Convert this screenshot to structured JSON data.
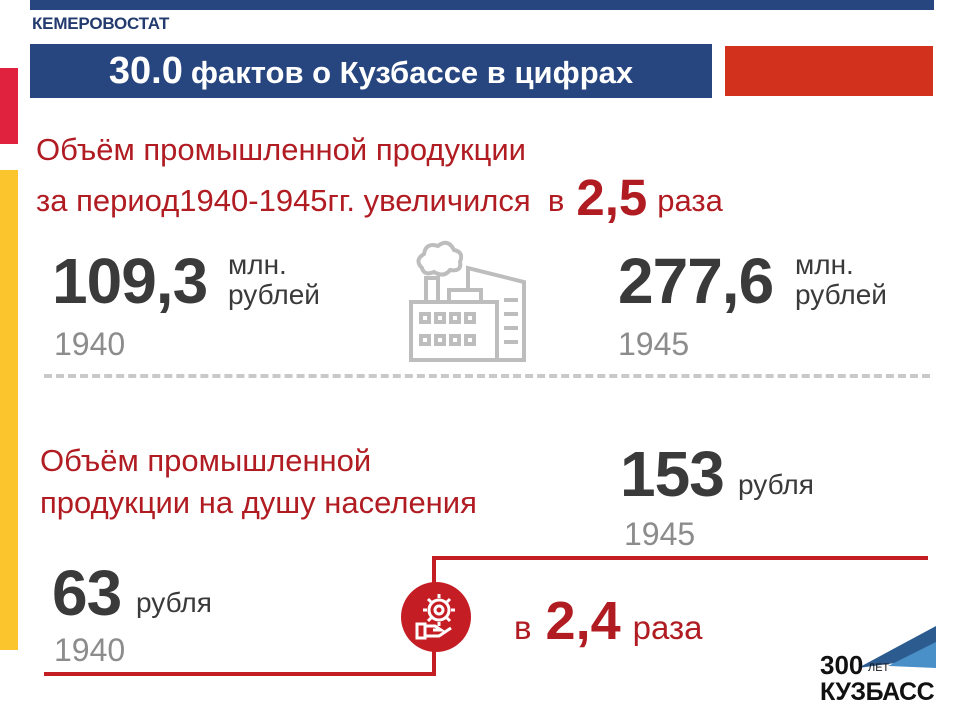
{
  "header": {
    "brand": "КЕМЕРОВОСТАТ",
    "title_number": "30.0",
    "title_text": "фактов о Кузбассе в цифрах"
  },
  "section1": {
    "line1": "Объём промышленной продукции",
    "line2_prefix": "за период1940-1945гг. увеличился  в",
    "factor": "2,5",
    "factor_suffix": "раза",
    "left": {
      "value": "109,3",
      "unit_line1": "млн.",
      "unit_line2": "рублей",
      "year": "1940"
    },
    "right": {
      "value": "277,6",
      "unit_line1": "млн.",
      "unit_line2": "рублей",
      "year": "1945"
    },
    "icon": "factory-icon"
  },
  "section2": {
    "line1": "Объём промышленной",
    "line2": "продукции на душу населения",
    "right": {
      "value": "153",
      "unit": "рубля",
      "year": "1945"
    },
    "left": {
      "value": "63",
      "unit": "рубля",
      "year": "1940"
    },
    "times_prefix": "в",
    "factor": "2,4",
    "factor_suffix": "раза",
    "icon": "gear-hand-icon"
  },
  "logo": {
    "number": "300",
    "small": "ЛЕТ",
    "name": "КУЗБАСС"
  },
  "colors": {
    "navy": "#27467f",
    "red": "#b01c22",
    "accent_red": "#d2311d",
    "yellow": "#fbc52d",
    "gray_text": "#3a3a3a",
    "year_gray": "#8c8c8c"
  }
}
